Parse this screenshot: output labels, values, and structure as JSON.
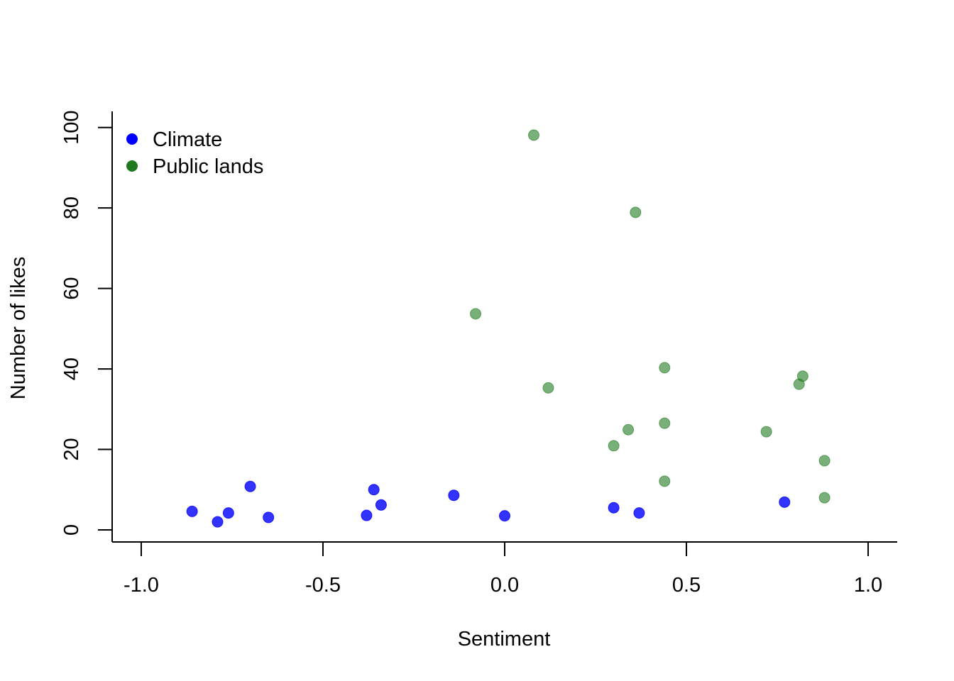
{
  "chart_data": {
    "type": "scatter",
    "title": "",
    "xlabel": "Sentiment",
    "ylabel": "Number of likes",
    "xlim": [
      -1.08,
      1.08
    ],
    "ylim": [
      -3,
      104
    ],
    "x_ticks": [
      -1.0,
      -0.5,
      0.0,
      0.5,
      1.0
    ],
    "x_tick_labels": [
      "-1.0",
      "-0.5",
      "0.0",
      "0.5",
      "1.0"
    ],
    "y_ticks": [
      0,
      20,
      40,
      60,
      80,
      100
    ],
    "y_tick_labels": [
      "0",
      "20",
      "40",
      "60",
      "80",
      "100"
    ],
    "grid": false,
    "legend_position": "top-left",
    "series": [
      {
        "name": "Climate",
        "color": "#0000ff",
        "marker_opacity": 0.8,
        "points": [
          {
            "x": -0.86,
            "y": 4.6
          },
          {
            "x": -0.79,
            "y": 2.0
          },
          {
            "x": -0.76,
            "y": 4.2
          },
          {
            "x": -0.7,
            "y": 10.8
          },
          {
            "x": -0.65,
            "y": 3.1
          },
          {
            "x": -0.38,
            "y": 3.6
          },
          {
            "x": -0.36,
            "y": 10.0
          },
          {
            "x": -0.34,
            "y": 6.2
          },
          {
            "x": -0.14,
            "y": 8.6
          },
          {
            "x": 0.0,
            "y": 3.5
          },
          {
            "x": 0.3,
            "y": 5.5
          },
          {
            "x": 0.37,
            "y": 4.2
          },
          {
            "x": 0.77,
            "y": 6.9
          }
        ]
      },
      {
        "name": "Public lands",
        "color": "#1f7a1f",
        "marker_opacity": 0.6,
        "points": [
          {
            "x": 0.08,
            "y": 98.1
          },
          {
            "x": 0.36,
            "y": 78.9
          },
          {
            "x": -0.08,
            "y": 53.7
          },
          {
            "x": 0.44,
            "y": 40.3
          },
          {
            "x": 0.12,
            "y": 35.3
          },
          {
            "x": 0.82,
            "y": 38.2
          },
          {
            "x": 0.81,
            "y": 36.2
          },
          {
            "x": 0.44,
            "y": 26.5
          },
          {
            "x": 0.34,
            "y": 24.9
          },
          {
            "x": 0.72,
            "y": 24.4
          },
          {
            "x": 0.3,
            "y": 20.9
          },
          {
            "x": 0.88,
            "y": 17.2
          },
          {
            "x": 0.44,
            "y": 12.1
          },
          {
            "x": 0.88,
            "y": 8.0
          }
        ]
      }
    ]
  }
}
